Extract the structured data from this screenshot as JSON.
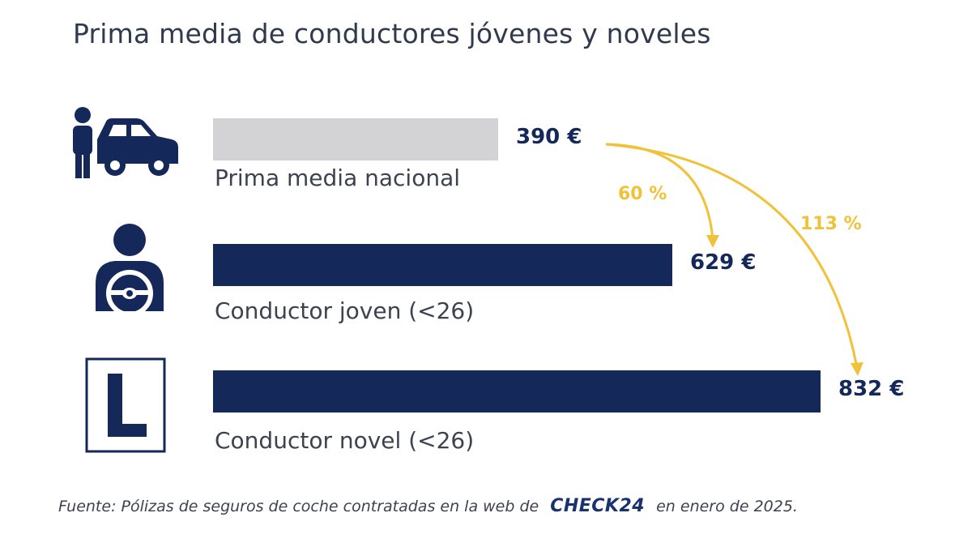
{
  "chart_data": {
    "type": "bar",
    "orientation": "horizontal",
    "title": "Prima media de conductores jóvenes y noveles",
    "categories": [
      "Prima media nacional",
      "Conductor joven (<26)",
      "Conductor novel (<26)"
    ],
    "values": [
      390,
      629,
      832
    ],
    "value_labels": [
      "390 €",
      "629 €",
      "832 €"
    ],
    "bar_colors": [
      "#d3d3d6",
      "#15285a",
      "#15285a"
    ],
    "annotations": [
      {
        "label": "60 %",
        "from": "Prima media nacional",
        "to": "Conductor joven (<26)"
      },
      {
        "label": "113 %",
        "from": "Prima media nacional",
        "to": "Conductor novel (<26)"
      }
    ],
    "annotation_color": "#f0c23a",
    "icons": [
      "person-car-icon",
      "driver-steering-wheel-icon",
      "learner-l-sign-icon"
    ]
  },
  "footer": {
    "text_before": "Fuente: Pólizas de seguros de coche contratadas en la web de",
    "logo": "CHECK24",
    "text_after": "en enero de 2025."
  }
}
